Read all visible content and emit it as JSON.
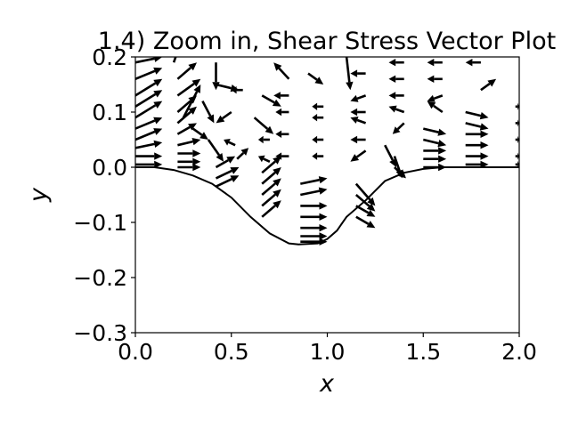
{
  "chart_data": {
    "type": "quiver",
    "title": "1.4) Zoom in, Shear Stress Vector Plot",
    "xlabel": "x",
    "ylabel": "y",
    "xlim": [
      0.0,
      2.0
    ],
    "ylim": [
      -0.3,
      0.2
    ],
    "xticks": [
      "0.0",
      "0.5",
      "1.0",
      "1.5",
      "2.0"
    ],
    "yticks": [
      "−0.3",
      "−0.2",
      "−0.1",
      "0.0",
      "0.1",
      "0.2"
    ],
    "grid": false,
    "legend": "none",
    "colors": {
      "arrows": "#000000",
      "wall": "#000000",
      "axes": "#000000",
      "background": "#ffffff"
    },
    "wall_profile": {
      "description_shape": "cosine dip",
      "x_start": 0.5,
      "x_end": 1.2,
      "x_min": 0.85,
      "y_min": -0.14,
      "points": [
        [
          0.0,
          0.0
        ],
        [
          0.1,
          0.0
        ],
        [
          0.2,
          -0.005
        ],
        [
          0.3,
          -0.015
        ],
        [
          0.4,
          -0.03
        ],
        [
          0.5,
          -0.055
        ],
        [
          0.6,
          -0.09
        ],
        [
          0.7,
          -0.12
        ],
        [
          0.8,
          -0.138
        ],
        [
          0.85,
          -0.14
        ],
        [
          0.95,
          -0.138
        ],
        [
          1.0,
          -0.13
        ],
        [
          1.05,
          -0.115
        ],
        [
          1.1,
          -0.09
        ],
        [
          1.2,
          -0.06
        ],
        [
          1.3,
          -0.025
        ],
        [
          1.4,
          -0.01
        ],
        [
          1.5,
          -0.003
        ],
        [
          1.6,
          0.0
        ],
        [
          1.8,
          0.0
        ],
        [
          2.0,
          0.0
        ]
      ]
    },
    "vectors": [
      {
        "x": 0.0,
        "y": 0.19,
        "u": 0.14,
        "v": 0.01
      },
      {
        "x": 0.0,
        "y": 0.16,
        "u": 0.14,
        "v": 0.02
      },
      {
        "x": 0.0,
        "y": 0.13,
        "u": 0.14,
        "v": 0.03
      },
      {
        "x": 0.0,
        "y": 0.11,
        "u": 0.14,
        "v": 0.03
      },
      {
        "x": 0.0,
        "y": 0.09,
        "u": 0.14,
        "v": 0.03
      },
      {
        "x": 0.0,
        "y": 0.07,
        "u": 0.14,
        "v": 0.02
      },
      {
        "x": 0.0,
        "y": 0.05,
        "u": 0.14,
        "v": 0.02
      },
      {
        "x": 0.0,
        "y": 0.035,
        "u": 0.14,
        "v": 0.01
      },
      {
        "x": 0.0,
        "y": 0.02,
        "u": 0.14,
        "v": 0.0
      },
      {
        "x": 0.0,
        "y": 0.005,
        "u": 0.14,
        "v": 0.0
      },
      {
        "x": 0.2,
        "y": 0.19,
        "u": 0.06,
        "v": 0.06
      },
      {
        "x": 0.22,
        "y": 0.16,
        "u": 0.1,
        "v": 0.03
      },
      {
        "x": 0.22,
        "y": 0.13,
        "u": 0.12,
        "v": 0.03
      },
      {
        "x": 0.22,
        "y": 0.1,
        "u": 0.1,
        "v": 0.03
      },
      {
        "x": 0.22,
        "y": 0.08,
        "u": 0.1,
        "v": 0.03
      },
      {
        "x": 0.22,
        "y": 0.06,
        "u": 0.1,
        "v": 0.02
      },
      {
        "x": 0.22,
        "y": 0.04,
        "u": 0.12,
        "v": 0.01
      },
      {
        "x": 0.22,
        "y": 0.025,
        "u": 0.12,
        "v": 0.0
      },
      {
        "x": 0.22,
        "y": 0.01,
        "u": 0.12,
        "v": 0.0
      },
      {
        "x": 0.22,
        "y": 0.0,
        "u": 0.12,
        "v": 0.0
      },
      {
        "x": 0.42,
        "y": 0.19,
        "u": 0.0,
        "v": -0.05
      },
      {
        "x": 0.42,
        "y": 0.15,
        "u": 0.12,
        "v": -0.01
      },
      {
        "x": 0.35,
        "y": 0.12,
        "u": 0.06,
        "v": -0.04
      },
      {
        "x": 0.25,
        "y": 0.09,
        "u": 0.09,
        "v": 0.06
      },
      {
        "x": 0.3,
        "y": 0.07,
        "u": 0.08,
        "v": -0.02
      },
      {
        "x": 0.38,
        "y": 0.05,
        "u": 0.08,
        "v": -0.04
      },
      {
        "x": 0.42,
        "y": 0.0,
        "u": 0.1,
        "v": 0.02
      },
      {
        "x": 0.42,
        "y": -0.02,
        "u": 0.12,
        "v": 0.02
      },
      {
        "x": 0.42,
        "y": -0.035,
        "u": 0.12,
        "v": 0.02
      },
      {
        "x": 0.56,
        "y": 0.14,
        "u": -0.06,
        "v": 0.0
      },
      {
        "x": 0.5,
        "y": 0.1,
        "u": -0.08,
        "v": -0.02
      },
      {
        "x": 0.52,
        "y": 0.04,
        "u": -0.06,
        "v": 0.01
      },
      {
        "x": 0.53,
        "y": 0.015,
        "u": 0.06,
        "v": 0.02
      },
      {
        "x": 0.66,
        "y": 0.13,
        "u": 0.1,
        "v": -0.02
      },
      {
        "x": 0.62,
        "y": 0.09,
        "u": 0.1,
        "v": -0.03
      },
      {
        "x": 0.7,
        "y": 0.05,
        "u": -0.06,
        "v": 0.0
      },
      {
        "x": 0.7,
        "y": 0.01,
        "u": -0.06,
        "v": 0.01
      },
      {
        "x": 0.66,
        "y": -0.01,
        "u": 0.1,
        "v": 0.03
      },
      {
        "x": 0.66,
        "y": -0.03,
        "u": 0.1,
        "v": 0.03
      },
      {
        "x": 0.66,
        "y": -0.05,
        "u": 0.1,
        "v": 0.03
      },
      {
        "x": 0.66,
        "y": -0.07,
        "u": 0.1,
        "v": 0.03
      },
      {
        "x": 0.66,
        "y": -0.09,
        "u": 0.1,
        "v": 0.03
      },
      {
        "x": 0.8,
        "y": 0.16,
        "u": -0.08,
        "v": 0.03
      },
      {
        "x": 0.8,
        "y": 0.13,
        "u": -0.08,
        "v": 0.0
      },
      {
        "x": 0.8,
        "y": 0.1,
        "u": -0.07,
        "v": 0.0
      },
      {
        "x": 0.8,
        "y": 0.06,
        "u": -0.07,
        "v": 0.0
      },
      {
        "x": 0.8,
        "y": 0.02,
        "u": -0.07,
        "v": 0.0
      },
      {
        "x": 0.86,
        "y": -0.03,
        "u": 0.14,
        "v": 0.01
      },
      {
        "x": 0.86,
        "y": -0.05,
        "u": 0.14,
        "v": 0.01
      },
      {
        "x": 0.86,
        "y": -0.07,
        "u": 0.14,
        "v": 0.0
      },
      {
        "x": 0.86,
        "y": -0.09,
        "u": 0.14,
        "v": 0.0
      },
      {
        "x": 0.86,
        "y": -0.11,
        "u": 0.14,
        "v": 0.0
      },
      {
        "x": 0.86,
        "y": -0.125,
        "u": 0.14,
        "v": 0.0
      },
      {
        "x": 0.86,
        "y": -0.135,
        "u": 0.14,
        "v": 0.0
      },
      {
        "x": 0.9,
        "y": 0.17,
        "u": 0.08,
        "v": -0.02
      },
      {
        "x": 0.98,
        "y": 0.11,
        "u": -0.06,
        "v": 0.0
      },
      {
        "x": 0.98,
        "y": 0.09,
        "u": -0.06,
        "v": 0.0
      },
      {
        "x": 0.98,
        "y": 0.05,
        "u": -0.06,
        "v": 0.0
      },
      {
        "x": 0.98,
        "y": 0.02,
        "u": -0.06,
        "v": 0.0
      },
      {
        "x": 1.1,
        "y": 0.2,
        "u": 0.02,
        "v": -0.06
      },
      {
        "x": 1.2,
        "y": 0.17,
        "u": -0.08,
        "v": 0.0
      },
      {
        "x": 1.2,
        "y": 0.13,
        "u": -0.08,
        "v": -0.01
      },
      {
        "x": 1.2,
        "y": 0.1,
        "u": -0.08,
        "v": 0.0
      },
      {
        "x": 1.2,
        "y": 0.08,
        "u": -0.08,
        "v": 0.01
      },
      {
        "x": 1.2,
        "y": 0.05,
        "u": -0.08,
        "v": 0.0
      },
      {
        "x": 1.2,
        "y": 0.03,
        "u": -0.08,
        "v": -0.02
      },
      {
        "x": 1.15,
        "y": -0.03,
        "u": 0.1,
        "v": -0.04
      },
      {
        "x": 1.15,
        "y": -0.05,
        "u": 0.1,
        "v": -0.03
      },
      {
        "x": 1.15,
        "y": -0.07,
        "u": 0.1,
        "v": -0.02
      },
      {
        "x": 1.15,
        "y": -0.09,
        "u": 0.1,
        "v": -0.02
      },
      {
        "x": 1.4,
        "y": 0.19,
        "u": -0.08,
        "v": 0.0
      },
      {
        "x": 1.4,
        "y": 0.16,
        "u": -0.08,
        "v": 0.0
      },
      {
        "x": 1.4,
        "y": 0.13,
        "u": -0.08,
        "v": 0.0
      },
      {
        "x": 1.4,
        "y": 0.1,
        "u": -0.08,
        "v": 0.01
      },
      {
        "x": 1.4,
        "y": 0.08,
        "u": -0.06,
        "v": -0.02
      },
      {
        "x": 1.3,
        "y": 0.04,
        "u": 0.06,
        "v": -0.04
      },
      {
        "x": 1.35,
        "y": 0.02,
        "u": 0.04,
        "v": -0.04
      },
      {
        "x": 1.35,
        "y": 0.0,
        "u": 0.06,
        "v": -0.02
      },
      {
        "x": 1.6,
        "y": 0.19,
        "u": -0.08,
        "v": 0.0
      },
      {
        "x": 1.6,
        "y": 0.16,
        "u": -0.08,
        "v": 0.0
      },
      {
        "x": 1.6,
        "y": 0.13,
        "u": -0.08,
        "v": -0.01
      },
      {
        "x": 1.6,
        "y": 0.1,
        "u": -0.08,
        "v": 0.02
      },
      {
        "x": 1.5,
        "y": 0.07,
        "u": 0.12,
        "v": -0.01
      },
      {
        "x": 1.5,
        "y": 0.05,
        "u": 0.12,
        "v": -0.01
      },
      {
        "x": 1.5,
        "y": 0.03,
        "u": 0.12,
        "v": 0.0
      },
      {
        "x": 1.5,
        "y": 0.015,
        "u": 0.12,
        "v": 0.0
      },
      {
        "x": 1.5,
        "y": 0.0,
        "u": 0.12,
        "v": 0.0
      },
      {
        "x": 1.8,
        "y": 0.19,
        "u": -0.08,
        "v": 0.0
      },
      {
        "x": 1.8,
        "y": 0.14,
        "u": 0.08,
        "v": 0.02
      },
      {
        "x": 1.72,
        "y": 0.1,
        "u": 0.12,
        "v": -0.01
      },
      {
        "x": 1.72,
        "y": 0.08,
        "u": 0.12,
        "v": -0.01
      },
      {
        "x": 1.72,
        "y": 0.06,
        "u": 0.12,
        "v": 0.0
      },
      {
        "x": 1.72,
        "y": 0.04,
        "u": 0.12,
        "v": 0.0
      },
      {
        "x": 1.72,
        "y": 0.02,
        "u": 0.12,
        "v": 0.0
      },
      {
        "x": 1.72,
        "y": 0.005,
        "u": 0.12,
        "v": 0.0
      },
      {
        "x": 1.98,
        "y": 0.11,
        "u": 0.02,
        "v": 0.0
      },
      {
        "x": 1.98,
        "y": 0.08,
        "u": 0.02,
        "v": 0.0
      },
      {
        "x": 1.98,
        "y": 0.05,
        "u": 0.02,
        "v": 0.0
      },
      {
        "x": 1.98,
        "y": 0.02,
        "u": 0.02,
        "v": 0.0
      },
      {
        "x": 1.98,
        "y": 0.005,
        "u": 0.02,
        "v": 0.0
      }
    ]
  }
}
